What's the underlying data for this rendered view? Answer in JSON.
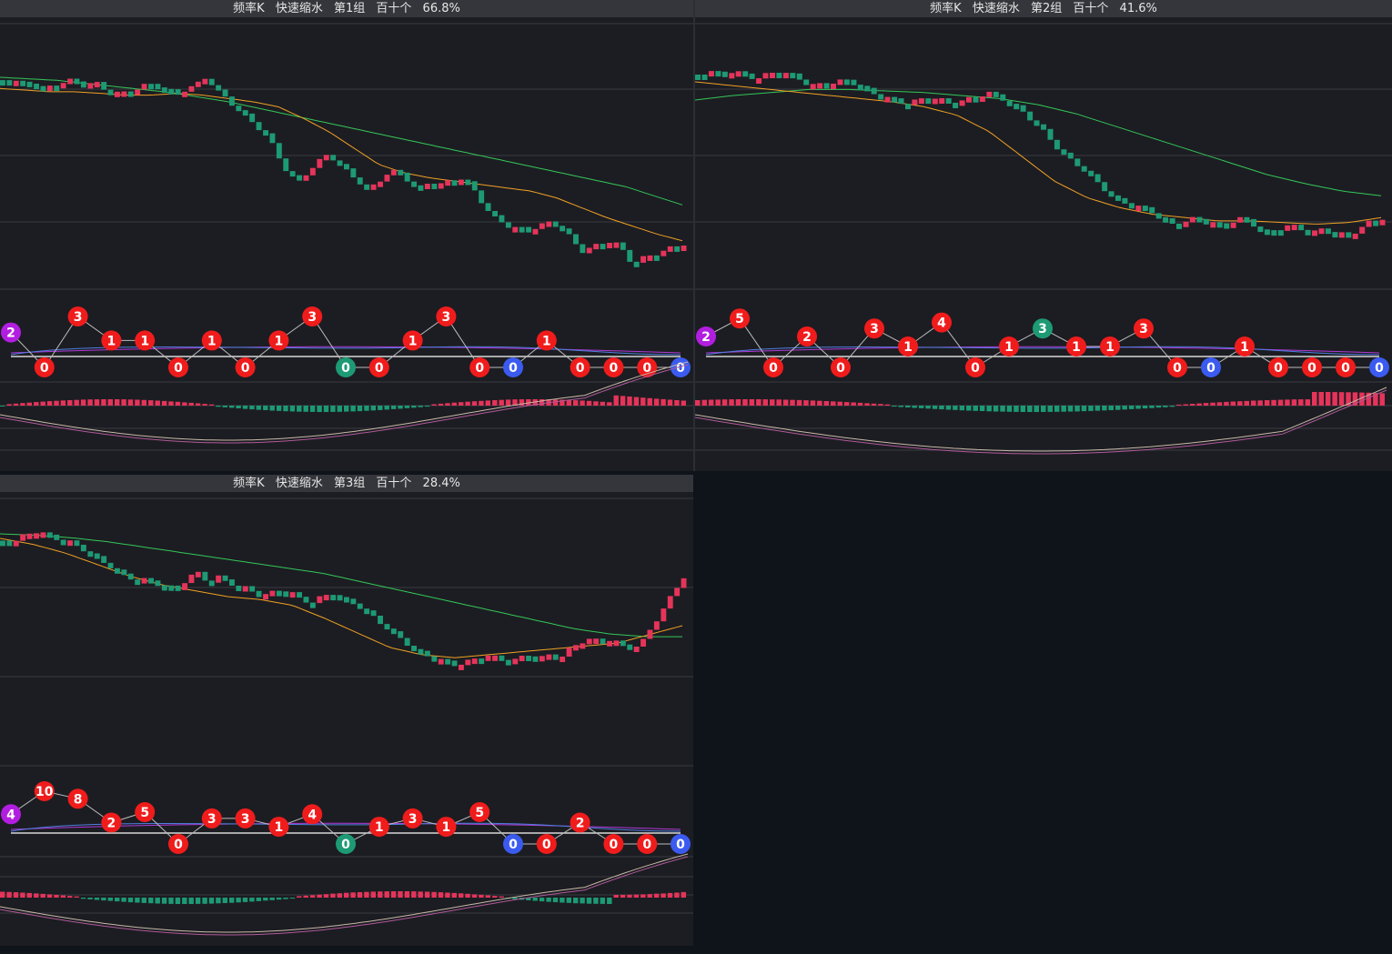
{
  "colors": {
    "bg": "#1c1d22",
    "grid": "#3a3c42",
    "up": "#e5345a",
    "down": "#1d9a74",
    "ma_short": "#f0a024",
    "ma_long": "#34c759",
    "bubble_red": "#f01c1c",
    "bubble_purple": "#b21ee0",
    "bubble_green": "#1d9a74",
    "bubble_blue": "#3b5bf0",
    "line_blue": "#4f7fe0",
    "line_purple": "#b03ad8",
    "baseline": "#d8d8d8",
    "macd_dif": "#c8b8a8",
    "macd_dea": "#b05a9a"
  },
  "panels": [
    {
      "title": {
        "name": "频率K",
        "mode": "快速缩水",
        "group": "第1组",
        "digit": "百十个",
        "pct": "66.8%"
      },
      "chart_data": {
        "type": "line",
        "title": "频率K  快速缩水  第1组  百十个  66.8%",
        "candles_trend": [
          0.05,
          0.05,
          0.07,
          0.06,
          0.1,
          0.08,
          0.06,
          0.05,
          0.08,
          0.06,
          0.1,
          0.12,
          0.12,
          0.1,
          0.08,
          0.07,
          0.1,
          0.12,
          0.1,
          0.08,
          0.03,
          0.1,
          0.15,
          0.2,
          0.25,
          0.3,
          0.35,
          0.45,
          0.55,
          0.6,
          0.55,
          0.5,
          0.45,
          0.5,
          0.55,
          0.6,
          0.65,
          0.6,
          0.55,
          0.55,
          0.6,
          0.65,
          0.6,
          0.62,
          0.6,
          0.58,
          0.62,
          0.7,
          0.78,
          0.82,
          0.85,
          0.86,
          0.86,
          0.84,
          0.82,
          0.85,
          0.92,
          0.98,
          0.96,
          0.94,
          0.92,
          0.98,
          1.05,
          1.02,
          1.0,
          0.98,
          0.96,
          0.94
        ],
        "ma_short": [
          0.04,
          0.05,
          0.06,
          0.06,
          0.07,
          0.08,
          0.08,
          0.07,
          0.08,
          0.1,
          0.12,
          0.15,
          0.22,
          0.3,
          0.4,
          0.5,
          0.55,
          0.58,
          0.6,
          0.62,
          0.64,
          0.66,
          0.7,
          0.76,
          0.82,
          0.87,
          0.92,
          0.96
        ],
        "ma_long": [
          0.0,
          0.01,
          0.02,
          0.04,
          0.06,
          0.08,
          0.1,
          0.13,
          0.16,
          0.2,
          0.24,
          0.28,
          0.32,
          0.36,
          0.4,
          0.44,
          0.48,
          0.52,
          0.56,
          0.6,
          0.64,
          0.68,
          0.72,
          0.78,
          0.84
        ],
        "digits": [
          "2",
          "0",
          "3",
          "1",
          "1",
          "0",
          "1",
          "0",
          "1",
          "3",
          "0",
          "0",
          "1",
          "3",
          "0",
          "0",
          "1",
          "0",
          "0",
          "0",
          "0"
        ],
        "digit_colors": [
          "purple",
          "red",
          "red",
          "red",
          "red",
          "red",
          "red",
          "red",
          "red",
          "red",
          "green",
          "red",
          "red",
          "red",
          "red",
          "blue",
          "red",
          "red",
          "red",
          "red",
          "blue"
        ],
        "digit_levels": [
          0.4,
          1,
          0,
          0.6,
          0.6,
          1,
          0.6,
          1,
          0.6,
          0,
          1,
          1,
          0.6,
          0,
          1,
          1,
          0.6,
          1,
          1,
          1,
          1
        ]
      }
    },
    {
      "title": {
        "name": "频率K",
        "mode": "快速缩水",
        "group": "第2组",
        "digit": "百十个",
        "pct": "41.6%"
      },
      "chart_data": {
        "type": "line",
        "title": "频率K  快速缩水  第2组  百十个  41.6%",
        "candles_trend": [
          0.02,
          0.0,
          0.02,
          0.0,
          0.02,
          0.04,
          0.02,
          0.0,
          0.02,
          0.05,
          0.08,
          0.07,
          0.06,
          0.05,
          0.08,
          0.12,
          0.14,
          0.16,
          0.18,
          0.16,
          0.14,
          0.16,
          0.18,
          0.16,
          0.14,
          0.12,
          0.14,
          0.18,
          0.22,
          0.28,
          0.34,
          0.42,
          0.48,
          0.52,
          0.58,
          0.64,
          0.7,
          0.72,
          0.74,
          0.76,
          0.8,
          0.84,
          0.82,
          0.8,
          0.82,
          0.84,
          0.82,
          0.8,
          0.84,
          0.88,
          0.86,
          0.84,
          0.86,
          0.88,
          0.86,
          0.88,
          0.9,
          0.86,
          0.82,
          0.8
        ],
        "ma_short": [
          0.0,
          0.02,
          0.04,
          0.06,
          0.08,
          0.1,
          0.12,
          0.15,
          0.2,
          0.3,
          0.45,
          0.6,
          0.7,
          0.76,
          0.8,
          0.82,
          0.84,
          0.84,
          0.85,
          0.86,
          0.85,
          0.82
        ],
        "ma_long": [
          0.15,
          0.12,
          0.1,
          0.08,
          0.08,
          0.09,
          0.1,
          0.12,
          0.14,
          0.18,
          0.24,
          0.32,
          0.4,
          0.48,
          0.56,
          0.64,
          0.7,
          0.75,
          0.78
        ],
        "digits": [
          "2",
          "5",
          "0",
          "2",
          "0",
          "3",
          "1",
          "4",
          "0",
          "1",
          "3",
          "1",
          "1",
          "3",
          "0",
          "0",
          "1",
          "0",
          "0",
          "0",
          "0"
        ],
        "digit_colors": [
          "purple",
          "red",
          "red",
          "red",
          "red",
          "red",
          "red",
          "red",
          "red",
          "red",
          "green",
          "red",
          "red",
          "red",
          "red",
          "blue",
          "red",
          "red",
          "red",
          "red",
          "blue"
        ],
        "digit_levels": [
          0.5,
          0.05,
          1,
          0.5,
          1,
          0.3,
          0.75,
          0.15,
          1,
          0.75,
          0.3,
          0.75,
          0.75,
          0.3,
          1,
          1,
          0.75,
          1,
          1,
          1,
          1
        ]
      }
    },
    {
      "title": {
        "name": "频率K",
        "mode": "快速缩水",
        "group": "第3组",
        "digit": "百十个",
        "pct": "28.4%"
      },
      "chart_data": {
        "type": "line",
        "title": "频率K  快速缩水  第3组  百十个  28.4%",
        "candles_trend": [
          0.08,
          0.1,
          0.05,
          0.02,
          0.04,
          0.06,
          0.08,
          0.1,
          0.14,
          0.18,
          0.22,
          0.26,
          0.3,
          0.32,
          0.32,
          0.34,
          0.36,
          0.38,
          0.3,
          0.28,
          0.34,
          0.3,
          0.34,
          0.36,
          0.38,
          0.42,
          0.4,
          0.38,
          0.4,
          0.44,
          0.46,
          0.42,
          0.4,
          0.44,
          0.46,
          0.5,
          0.55,
          0.6,
          0.65,
          0.7,
          0.75,
          0.78,
          0.8,
          0.82,
          0.84,
          0.82,
          0.8,
          0.78,
          0.8,
          0.82,
          0.8,
          0.78,
          0.8,
          0.78,
          0.8,
          0.74,
          0.7,
          0.68,
          0.7,
          0.68,
          0.72,
          0.74,
          0.7,
          0.6,
          0.5,
          0.4,
          0.3
        ],
        "ma_short": [
          0.0,
          0.04,
          0.1,
          0.18,
          0.26,
          0.32,
          0.36,
          0.4,
          0.42,
          0.46,
          0.55,
          0.65,
          0.75,
          0.8,
          0.82,
          0.8,
          0.78,
          0.76,
          0.74,
          0.72,
          0.66,
          0.6
        ],
        "ma_long": [
          0.0,
          0.01,
          0.03,
          0.06,
          0.1,
          0.14,
          0.18,
          0.22,
          0.26,
          0.3,
          0.36,
          0.42,
          0.48,
          0.54,
          0.6,
          0.66,
          0.72,
          0.76,
          0.78,
          0.78
        ],
        "digits": [
          "4",
          "10",
          "8",
          "2",
          "5",
          "0",
          "3",
          "3",
          "1",
          "4",
          "0",
          "1",
          "3",
          "1",
          "5",
          "0",
          "0",
          "2",
          "0",
          "0",
          "0"
        ],
        "digit_colors": [
          "purple",
          "red",
          "red",
          "red",
          "red",
          "red",
          "red",
          "red",
          "red",
          "red",
          "green",
          "red",
          "red",
          "red",
          "red",
          "blue",
          "red",
          "red",
          "red",
          "red",
          "blue"
        ],
        "digit_levels": [
          0.55,
          0.0,
          0.18,
          0.75,
          0.5,
          1,
          0.65,
          0.65,
          0.85,
          0.55,
          1,
          0.85,
          0.65,
          0.85,
          0.5,
          1,
          1,
          0.75,
          1,
          1,
          1
        ]
      }
    }
  ]
}
